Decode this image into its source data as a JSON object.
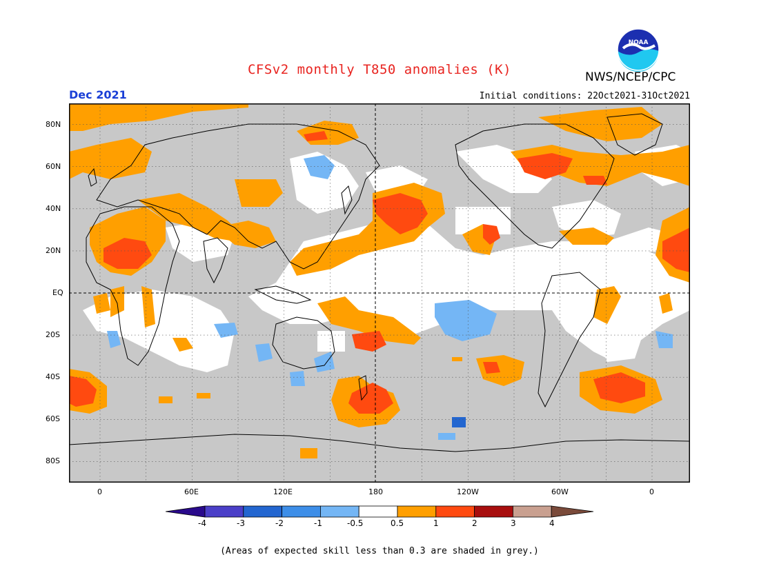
{
  "header": {
    "title": "CFSv2 monthly T850 anomalies (K)",
    "month": "Dec 2021",
    "agency": "NWS/NCEP/CPC",
    "initial_conditions": "Initial conditions: 22Oct2021-31Oct2021",
    "logo_text": "NOAA"
  },
  "map": {
    "lat_labels": [
      "80N",
      "60N",
      "40N",
      "20N",
      "EQ",
      "20S",
      "40S",
      "60S",
      "80S"
    ],
    "lon_labels": [
      "0",
      "60E",
      "120E",
      "180",
      "120W",
      "60W",
      "0"
    ]
  },
  "colorbar": {
    "labels": [
      "-4",
      "-3",
      "-2",
      "-1",
      "-0.5",
      "0.5",
      "1",
      "2",
      "3",
      "4"
    ],
    "colors": [
      "#2a0a8c",
      "#4b3fc8",
      "#2366d0",
      "#3d8ee8",
      "#74b6f5",
      "#ffffff",
      "#ff9f00",
      "#ff4a10",
      "#a80e0e",
      "#c9a090",
      "#7a4a3a"
    ]
  },
  "palette": {
    "grey_skill": "#c8c8c8",
    "orange": "#ff9f00",
    "red": "#ff4a10",
    "light_blue": "#74b6f5",
    "blue": "#3d8ee8",
    "dark_blue": "#2366d0"
  },
  "footnote": "(Areas of expected skill less than 0.3 are shaded in grey.)"
}
